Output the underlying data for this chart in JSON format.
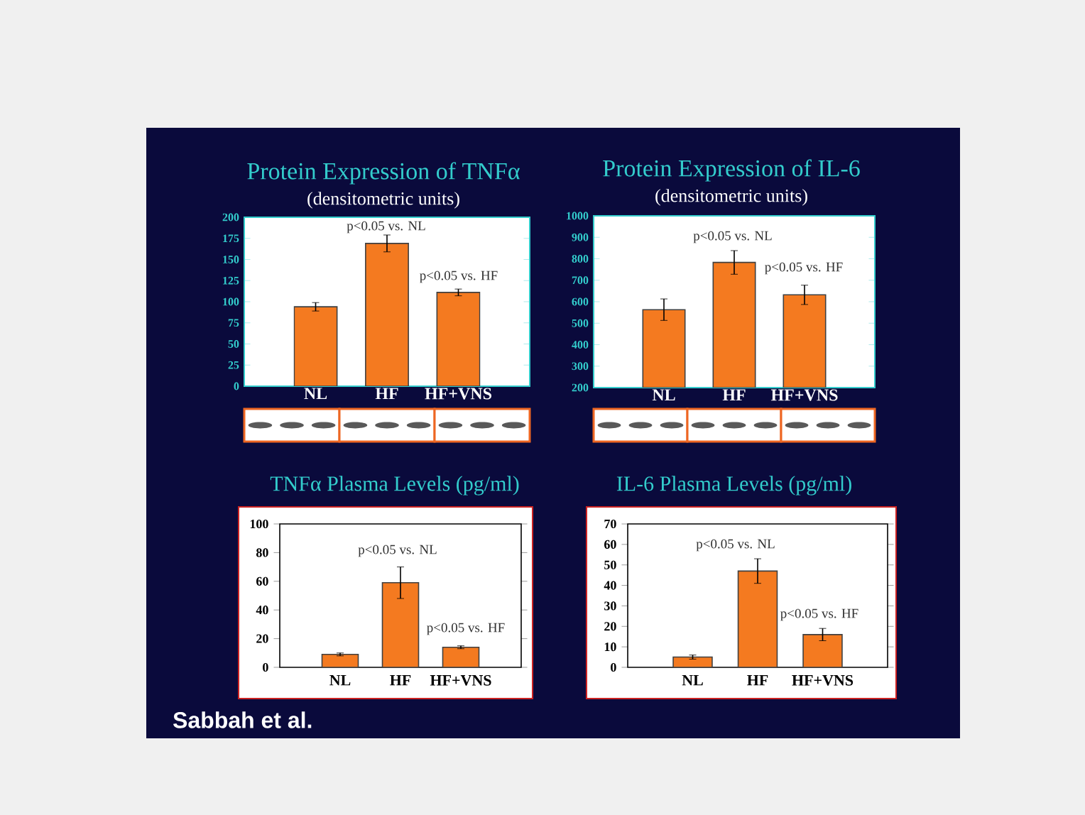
{
  "chart_data": [
    {
      "type": "bar",
      "title": "Protein Expression of TNFα",
      "subtitle": "(densitometric units)",
      "categories": [
        "NL",
        "HF",
        "HF+VNS"
      ],
      "values": [
        94,
        169,
        111
      ],
      "errors": [
        5,
        10,
        4
      ],
      "color": "#f47a20",
      "ylim": [
        0,
        200
      ],
      "yticks": [
        0,
        25,
        50,
        75,
        100,
        125,
        150,
        175,
        200
      ],
      "annotations": [
        "p<0.05 vs. NL",
        "p<0.05 vs. HF"
      ]
    },
    {
      "type": "bar",
      "title": "Protein Expression of IL-6",
      "subtitle": "(densitometric units)",
      "categories": [
        "NL",
        "HF",
        "HF+VNS"
      ],
      "values": [
        563,
        783,
        632
      ],
      "errors": [
        50,
        55,
        45
      ],
      "color": "#f47a20",
      "ylim": [
        200,
        1000
      ],
      "yticks": [
        200,
        300,
        400,
        500,
        600,
        700,
        800,
        900,
        1000
      ],
      "annotations": [
        "p<0.05 vs. NL",
        "p<0.05 vs. HF"
      ]
    },
    {
      "type": "bar",
      "title": "TNFα Plasma Levels (pg/ml)",
      "categories": [
        "NL",
        "HF",
        "HF+VNS"
      ],
      "values": [
        9,
        59,
        14
      ],
      "errors": [
        1,
        11,
        1
      ],
      "color": "#f47a20",
      "ylim": [
        0,
        100
      ],
      "yticks": [
        0,
        20,
        40,
        60,
        80,
        100
      ],
      "annotations": [
        "p<0.05 vs. NL",
        "p<0.05 vs. HF",
        "Sabbah et al."
      ]
    },
    {
      "type": "bar",
      "title": "IL-6 Plasma Levels (pg/ml)",
      "categories": [
        "NL",
        "HF",
        "HF+VNS"
      ],
      "values": [
        5,
        47,
        16
      ],
      "errors": [
        1,
        6,
        3
      ],
      "color": "#f47a20",
      "ylim": [
        0,
        70
      ],
      "yticks": [
        0,
        10,
        20,
        30,
        40,
        50,
        60,
        70
      ],
      "annotations": [
        "p<0.05 vs. NL",
        "p<0.05 vs. HF"
      ]
    }
  ]
}
